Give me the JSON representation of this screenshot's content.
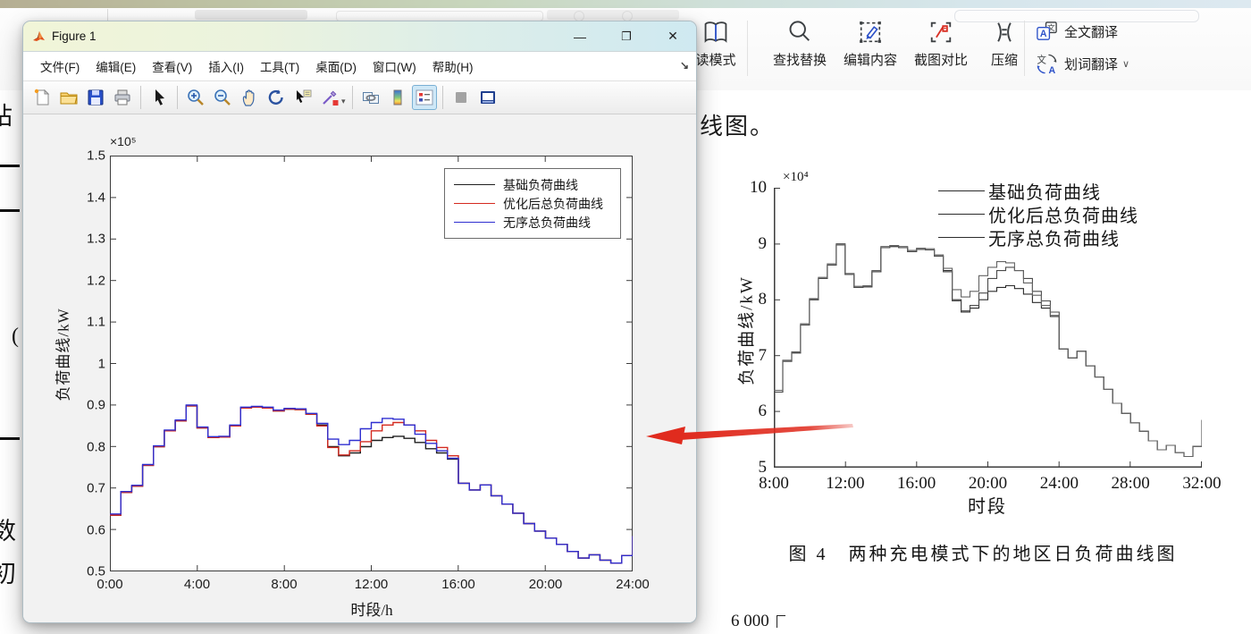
{
  "ribbon": {
    "tools": [
      {
        "id": "read-mode",
        "label": "读模式"
      },
      {
        "id": "find-replace",
        "label": "查找替换"
      },
      {
        "id": "edit-content",
        "label": "编辑内容"
      },
      {
        "id": "screenshot-compare",
        "label": "截图对比"
      },
      {
        "id": "compress",
        "label": "压缩"
      },
      {
        "id": "full-translate",
        "label": "全文翻译"
      },
      {
        "id": "word-translate",
        "label": "划词翻译",
        "chevron": "∨"
      }
    ]
  },
  "matlab_window": {
    "title": "Figure 1",
    "menus": [
      "文件(F)",
      "编辑(E)",
      "查看(V)",
      "插入(I)",
      "工具(T)",
      "桌面(D)",
      "窗口(W)",
      "帮助(H)"
    ],
    "controls": {
      "minimize": "—",
      "maximize": "❐",
      "close": "✕"
    },
    "dock_arrow": "↘",
    "toolbar_icons": [
      "new-figure",
      "open-file",
      "save-figure",
      "print-figure",
      "pointer",
      "zoom-in",
      "zoom-out",
      "pan",
      "rotate-3d",
      "data-cursor",
      "brush",
      "link-plots",
      "colorbar",
      "legend",
      "deselect",
      "plot-tools"
    ]
  },
  "doc": {
    "left_fragments": [
      "站",
      "(",
      "数",
      "初"
    ],
    "top_text": "线图。",
    "caption": "图 4　两种充电模式下的地区日负荷曲线图",
    "next_axis_label": "6 000"
  },
  "colors": {
    "base_line": "#1f1f1f",
    "optimized_line": "#d42a20",
    "unordered_line": "#2f2fd0",
    "arrow_red": "#e02b1e",
    "print_line": "#2b2b2b"
  },
  "chart_data": [
    {
      "type": "line",
      "title": "",
      "xlabel": "时段/h",
      "ylabel": "负荷曲线/kW",
      "y_multiplier": "×10⁵",
      "xlim_hours": [
        0,
        24
      ],
      "ylim": [
        0.5,
        1.5
      ],
      "x_step_hours": 0.5,
      "xticks": [
        "0:00",
        "4:00",
        "8:00",
        "12:00",
        "16:00",
        "20:00",
        "24:00"
      ],
      "yticks": [
        "1.5",
        "1.4",
        "1.3",
        "1.2",
        "1.1",
        "1",
        "0.9",
        "0.8",
        "0.7",
        "0.6",
        "0.5"
      ],
      "grid": false,
      "legend_position": "top-right",
      "series": [
        {
          "name": "基础负荷曲线",
          "color": "#1f1f1f",
          "values": [
            0.635,
            0.69,
            0.705,
            0.755,
            0.8,
            0.838,
            0.862,
            0.898,
            0.845,
            0.822,
            0.823,
            0.85,
            0.893,
            0.895,
            0.893,
            0.886,
            0.89,
            0.889,
            0.878,
            0.852,
            0.8,
            0.778,
            0.785,
            0.8,
            0.815,
            0.822,
            0.825,
            0.82,
            0.81,
            0.795,
            0.785,
            0.77,
            0.712,
            0.696,
            0.708,
            0.682,
            0.662,
            0.64,
            0.615,
            0.597,
            0.58,
            0.565,
            0.548,
            0.532,
            0.54,
            0.527,
            0.52,
            0.538,
            0.585
          ]
        },
        {
          "name": "优化后总负荷曲线",
          "color": "#d42a20",
          "values": [
            0.635,
            0.69,
            0.705,
            0.755,
            0.8,
            0.838,
            0.862,
            0.898,
            0.845,
            0.822,
            0.823,
            0.85,
            0.893,
            0.895,
            0.893,
            0.886,
            0.89,
            0.889,
            0.878,
            0.85,
            0.798,
            0.78,
            0.79,
            0.812,
            0.838,
            0.852,
            0.858,
            0.852,
            0.838,
            0.815,
            0.798,
            0.778,
            0.712,
            0.696,
            0.708,
            0.682,
            0.662,
            0.64,
            0.615,
            0.597,
            0.58,
            0.565,
            0.548,
            0.532,
            0.54,
            0.527,
            0.52,
            0.538,
            0.585
          ]
        },
        {
          "name": "无序总负荷曲线",
          "color": "#2f2fd0",
          "values": [
            0.638,
            0.692,
            0.707,
            0.757,
            0.802,
            0.84,
            0.864,
            0.9,
            0.847,
            0.824,
            0.825,
            0.852,
            0.895,
            0.897,
            0.895,
            0.888,
            0.892,
            0.891,
            0.88,
            0.856,
            0.818,
            0.805,
            0.815,
            0.843,
            0.858,
            0.868,
            0.866,
            0.852,
            0.83,
            0.808,
            0.79,
            0.772,
            0.712,
            0.696,
            0.708,
            0.682,
            0.662,
            0.64,
            0.615,
            0.597,
            0.58,
            0.565,
            0.548,
            0.532,
            0.54,
            0.527,
            0.52,
            0.538,
            0.585
          ]
        }
      ]
    },
    {
      "type": "line",
      "title": "",
      "xlabel": "时段",
      "ylabel": "负荷曲线/kW",
      "y_multiplier": "×10⁴",
      "ylim": [
        5,
        10
      ],
      "x_step_hours": 0.5,
      "xticks": [
        "8:00",
        "12:00",
        "16:00",
        "20:00",
        "24:00",
        "28:00",
        "32:00"
      ],
      "yticks": [
        "10",
        "9",
        "8",
        "7",
        "6",
        "5"
      ],
      "grid": false,
      "legend_position": "top-right",
      "series": [
        {
          "name": "基础负荷曲线",
          "color": "#2b2b2b",
          "values": [
            6.35,
            6.9,
            7.05,
            7.55,
            8.0,
            8.38,
            8.62,
            8.98,
            8.45,
            8.22,
            8.23,
            8.5,
            8.93,
            8.95,
            8.93,
            8.86,
            8.9,
            8.89,
            8.78,
            8.52,
            8.0,
            7.78,
            7.85,
            8.0,
            8.15,
            8.22,
            8.25,
            8.2,
            8.1,
            7.95,
            7.85,
            7.7,
            7.12,
            6.96,
            7.08,
            6.82,
            6.62,
            6.4,
            6.15,
            5.97,
            5.8,
            5.65,
            5.48,
            5.32,
            5.4,
            5.27,
            5.2,
            5.38,
            5.85
          ]
        },
        {
          "name": "优化后总负荷曲线",
          "color": "#4a4a4a",
          "values": [
            6.35,
            6.9,
            7.05,
            7.55,
            8.0,
            8.38,
            8.62,
            8.98,
            8.45,
            8.22,
            8.23,
            8.5,
            8.93,
            8.95,
            8.93,
            8.86,
            8.9,
            8.89,
            8.78,
            8.5,
            7.98,
            7.8,
            7.9,
            8.12,
            8.38,
            8.52,
            8.58,
            8.52,
            8.38,
            8.15,
            7.98,
            7.78,
            7.12,
            6.96,
            7.08,
            6.82,
            6.62,
            6.4,
            6.15,
            5.97,
            5.8,
            5.65,
            5.48,
            5.32,
            5.4,
            5.27,
            5.2,
            5.38,
            5.85
          ]
        },
        {
          "name": "无序总负荷曲线",
          "color": "#636363",
          "values": [
            6.38,
            6.92,
            7.07,
            7.57,
            8.02,
            8.4,
            8.64,
            9.0,
            8.47,
            8.24,
            8.25,
            8.52,
            8.95,
            8.97,
            8.95,
            8.88,
            8.92,
            8.91,
            8.8,
            8.56,
            8.18,
            8.05,
            8.15,
            8.43,
            8.58,
            8.68,
            8.66,
            8.52,
            8.3,
            8.08,
            7.9,
            7.72,
            7.12,
            6.96,
            7.08,
            6.82,
            6.62,
            6.4,
            6.15,
            5.97,
            5.8,
            5.65,
            5.48,
            5.32,
            5.4,
            5.27,
            5.2,
            5.38,
            5.85
          ]
        }
      ]
    }
  ]
}
